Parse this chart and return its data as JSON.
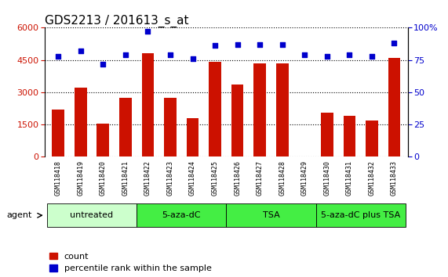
{
  "title": "GDS2213 / 201613_s_at",
  "samples": [
    "GSM118418",
    "GSM118419",
    "GSM118420",
    "GSM118421",
    "GSM118422",
    "GSM118423",
    "GSM118424",
    "GSM118425",
    "GSM118426",
    "GSM118427",
    "GSM118428",
    "GSM118429",
    "GSM118430",
    "GSM118431",
    "GSM118432",
    "GSM118433"
  ],
  "counts": [
    2200,
    3200,
    1550,
    2750,
    4800,
    2750,
    1800,
    4400,
    3350,
    4350,
    4350,
    0,
    2050,
    1900,
    1700,
    4600
  ],
  "percentiles": [
    78,
    82,
    72,
    79,
    97,
    79,
    76,
    86,
    87,
    87,
    87,
    79,
    78,
    79,
    78,
    88
  ],
  "bar_color": "#cc1100",
  "dot_color": "#0000cc",
  "ylim_left": [
    0,
    6000
  ],
  "ylim_right": [
    0,
    100
  ],
  "yticks_left": [
    0,
    1500,
    3000,
    4500,
    6000
  ],
  "yticks_right": [
    0,
    25,
    50,
    75,
    100
  ],
  "ytick_labels_right": [
    "0",
    "25",
    "50",
    "75",
    "100%"
  ],
  "groups": [
    {
      "label": "untreated",
      "start": 0,
      "end": 4,
      "color": "#ccffcc"
    },
    {
      "label": "5-aza-dC",
      "start": 4,
      "end": 8,
      "color": "#44dd44"
    },
    {
      "label": "TSA",
      "start": 8,
      "end": 12,
      "color": "#44dd44"
    },
    {
      "label": "5-aza-dC plus TSA",
      "start": 12,
      "end": 16,
      "color": "#44dd44"
    }
  ],
  "agent_label": "agent",
  "legend_count_label": "count",
  "legend_pct_label": "percentile rank within the sample",
  "title_fontsize": 11,
  "tick_fontsize": 8,
  "group_fontsize": 8,
  "legend_fontsize": 8,
  "xtick_fontsize": 6
}
